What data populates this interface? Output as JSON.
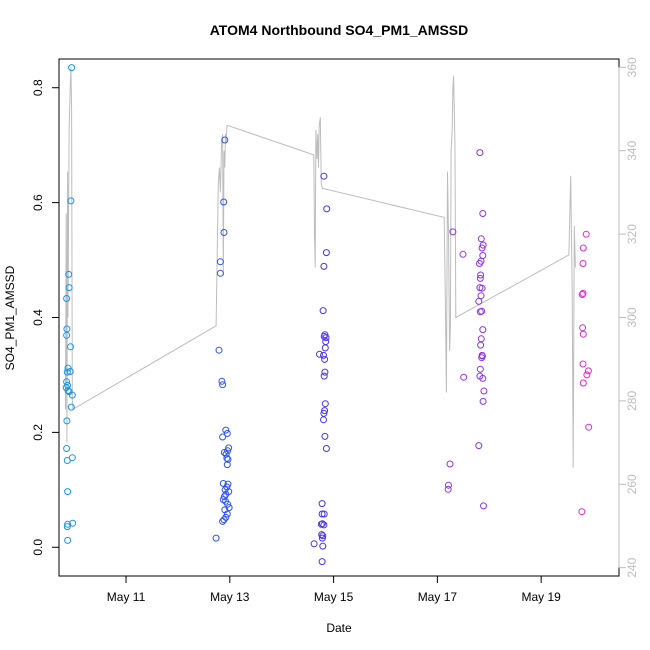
{
  "chart_data": {
    "type": "scatter",
    "title": "ATOM4 Northbound SO4_PM1_AMSSD",
    "xlabel": "Date",
    "ylabel": "SO4_PM1_AMSSD",
    "x_ticks": [
      "May 11",
      "May 13",
      "May 15",
      "May 17",
      "May 19"
    ],
    "y_ticks": [
      "0.0",
      "0.2",
      "0.4",
      "0.6",
      "0.8"
    ],
    "y2_ticks": [
      "240",
      "260",
      "280",
      "300",
      "320",
      "340",
      "360"
    ],
    "x_range": [
      "2018-05-09T17:00",
      "2018-05-20T12:00"
    ],
    "ylim": [
      -0.05,
      0.85
    ],
    "y2lim": [
      238,
      362
    ],
    "grid": false,
    "marker_color_range": [
      "#00a0e0",
      "#ff1ec8"
    ],
    "line_color": "#bdbdbd",
    "scatter_series": [
      {
        "color": "#1896e8",
        "points": [
          [
            "2018-05-09T22:50",
            0.835
          ],
          [
            "2018-05-09T22:30",
            0.603
          ],
          [
            "2018-05-09T21:30",
            0.475
          ],
          [
            "2018-05-09T21:40",
            0.452
          ],
          [
            "2018-05-09T20:30",
            0.433
          ],
          [
            "2018-05-09T20:40",
            0.38
          ],
          [
            "2018-05-09T20:30",
            0.369
          ],
          [
            "2018-05-09T22:20",
            0.349
          ],
          [
            "2018-05-09T21:10",
            0.312
          ],
          [
            "2018-05-09T20:50",
            0.305
          ],
          [
            "2018-05-09T22:10",
            0.306
          ],
          [
            "2018-05-09T20:30",
            0.288
          ],
          [
            "2018-05-09T21:00",
            0.282
          ],
          [
            "2018-05-09T20:20",
            0.278
          ],
          [
            "2018-05-09T21:10",
            0.273
          ],
          [
            "2018-05-09T21:40",
            0.271
          ],
          [
            "2018-05-09T23:10",
            0.265
          ],
          [
            "2018-05-09T22:40",
            0.244
          ],
          [
            "2018-05-09T20:40",
            0.22
          ],
          [
            "2018-05-09T20:30",
            0.172
          ],
          [
            "2018-05-09T23:10",
            0.156
          ],
          [
            "2018-05-09T20:50",
            0.151
          ],
          [
            "2018-05-09T21:00",
            0.097
          ],
          [
            "2018-05-09T23:20",
            0.042
          ],
          [
            "2018-05-09T21:00",
            0.04
          ],
          [
            "2018-05-09T20:50",
            0.036
          ],
          [
            "2018-05-09T21:00",
            0.012
          ]
        ]
      },
      {
        "color": "#2e54ea",
        "points": [
          [
            "2018-05-12T21:40",
            0.709
          ],
          [
            "2018-05-12T21:10",
            0.601
          ],
          [
            "2018-05-12T21:20",
            0.548
          ],
          [
            "2018-05-12T19:40",
            0.497
          ],
          [
            "2018-05-12T19:40",
            0.477
          ],
          [
            "2018-05-12T19:00",
            0.343
          ],
          [
            "2018-05-12T20:20",
            0.289
          ],
          [
            "2018-05-12T20:40",
            0.283
          ],
          [
            "2018-05-12T22:10",
            0.204
          ],
          [
            "2018-05-12T22:50",
            0.198
          ],
          [
            "2018-05-12T20:40",
            0.192
          ],
          [
            "2018-05-12T23:30",
            0.173
          ],
          [
            "2018-05-12T23:00",
            0.168
          ],
          [
            "2018-05-12T21:30",
            0.165
          ],
          [
            "2018-05-12T22:20",
            0.162
          ],
          [
            "2018-05-12T22:40",
            0.155
          ],
          [
            "2018-05-12T23:10",
            0.153
          ],
          [
            "2018-05-12T22:50",
            0.144
          ],
          [
            "2018-05-12T21:00",
            0.111
          ],
          [
            "2018-05-12T23:10",
            0.11
          ],
          [
            "2018-05-12T22:40",
            0.105
          ],
          [
            "2018-05-12T21:50",
            0.1
          ],
          [
            "2018-05-12T23:30",
            0.097
          ],
          [
            "2018-05-12T22:10",
            0.092
          ],
          [
            "2018-05-12T21:30",
            0.088
          ],
          [
            "2018-05-12T21:00",
            0.083
          ],
          [
            "2018-05-12T22:00",
            0.08
          ],
          [
            "2018-05-12T23:00",
            0.075
          ],
          [
            "2018-05-12T23:40",
            0.069
          ],
          [
            "2018-05-12T21:40",
            0.065
          ],
          [
            "2018-05-12T22:50",
            0.058
          ],
          [
            "2018-05-12T22:10",
            0.052
          ],
          [
            "2018-05-12T21:20",
            0.048
          ],
          [
            "2018-05-12T20:40",
            0.045
          ],
          [
            "2018-05-12T17:40",
            0.016
          ]
        ]
      },
      {
        "color": "#4a32ec",
        "points": [
          [
            "2018-05-14T19:30",
            0.646
          ],
          [
            "2018-05-14T20:50",
            0.589
          ],
          [
            "2018-05-14T20:40",
            0.513
          ],
          [
            "2018-05-14T19:30",
            0.489
          ],
          [
            "2018-05-14T19:10",
            0.412
          ],
          [
            "2018-05-14T20:00",
            0.37
          ],
          [
            "2018-05-14T19:40",
            0.367
          ],
          [
            "2018-05-14T20:30",
            0.365
          ],
          [
            "2018-05-14T20:20",
            0.358
          ],
          [
            "2018-05-14T20:10",
            0.347
          ],
          [
            "2018-05-14T17:30",
            0.336
          ],
          [
            "2018-05-14T19:20",
            0.334
          ],
          [
            "2018-05-14T19:50",
            0.327
          ],
          [
            "2018-05-14T20:00",
            0.305
          ],
          [
            "2018-05-14T19:40",
            0.298
          ],
          [
            "2018-05-14T20:10",
            0.25
          ],
          [
            "2018-05-14T19:50",
            0.238
          ],
          [
            "2018-05-14T19:30",
            0.233
          ],
          [
            "2018-05-14T19:20",
            0.222
          ],
          [
            "2018-05-14T20:00",
            0.193
          ],
          [
            "2018-05-14T20:40",
            0.172
          ],
          [
            "2018-05-14T18:40",
            0.076
          ],
          [
            "2018-05-14T18:40",
            0.058
          ],
          [
            "2018-05-14T19:40",
            0.058
          ],
          [
            "2018-05-14T18:50",
            0.041
          ],
          [
            "2018-05-14T18:20",
            0.04
          ],
          [
            "2018-05-14T19:30",
            0.039
          ],
          [
            "2018-05-14T18:30",
            0.022
          ],
          [
            "2018-05-14T19:00",
            0.02
          ],
          [
            "2018-05-14T18:50",
            0.016
          ],
          [
            "2018-05-14T15:00",
            0.006
          ],
          [
            "2018-05-14T19:00",
            0.002
          ],
          [
            "2018-05-14T18:40",
            -0.025
          ]
        ]
      },
      {
        "color": "#8c34ea",
        "points": [
          [
            "2018-05-17T19:40",
            0.687
          ],
          [
            "2018-05-17T21:00",
            0.581
          ],
          [
            "2018-05-17T07:10",
            0.549
          ],
          [
            "2018-05-17T20:20",
            0.537
          ],
          [
            "2018-05-17T21:10",
            0.526
          ],
          [
            "2018-05-17T20:40",
            0.521
          ],
          [
            "2018-05-17T11:50",
            0.51
          ],
          [
            "2018-05-17T21:00",
            0.508
          ],
          [
            "2018-05-17T19:30",
            0.494
          ],
          [
            "2018-05-17T20:10",
            0.498
          ],
          [
            "2018-05-17T20:00",
            0.474
          ],
          [
            "2018-05-17T19:50",
            0.468
          ],
          [
            "2018-05-17T19:40",
            0.452
          ],
          [
            "2018-05-17T20:40",
            0.451
          ],
          [
            "2018-05-17T20:10",
            0.438
          ],
          [
            "2018-05-17T19:10",
            0.428
          ],
          [
            "2018-05-17T20:30",
            0.411
          ],
          [
            "2018-05-17T19:50",
            0.41
          ],
          [
            "2018-05-17T21:00",
            0.379
          ],
          [
            "2018-05-17T20:20",
            0.363
          ],
          [
            "2018-05-17T20:00",
            0.352
          ],
          [
            "2018-05-17T20:40",
            0.334
          ],
          [
            "2018-05-17T20:50",
            0.333
          ],
          [
            "2018-05-17T20:30",
            0.33
          ],
          [
            "2018-05-17T19:50",
            0.31
          ],
          [
            "2018-05-17T21:00",
            0.294
          ],
          [
            "2018-05-17T19:40",
            0.298
          ],
          [
            "2018-05-17T12:10",
            0.296
          ],
          [
            "2018-05-17T21:30",
            0.272
          ],
          [
            "2018-05-17T21:10",
            0.254
          ],
          [
            "2018-05-17T19:10",
            0.177
          ],
          [
            "2018-05-17T05:50",
            0.145
          ],
          [
            "2018-05-17T05:10",
            0.108
          ],
          [
            "2018-05-17T05:00",
            0.101
          ],
          [
            "2018-05-17T21:20",
            0.072
          ]
        ]
      },
      {
        "color": "#dc28d4",
        "points": [
          [
            "2018-05-19T20:50",
            0.545
          ],
          [
            "2018-05-19T19:30",
            0.521
          ],
          [
            "2018-05-19T19:20",
            0.494
          ],
          [
            "2018-05-19T19:00",
            0.44
          ],
          [
            "2018-05-19T19:20",
            0.442
          ],
          [
            "2018-05-19T19:10",
            0.382
          ],
          [
            "2018-05-19T19:30",
            0.371
          ],
          [
            "2018-05-19T19:20",
            0.319
          ],
          [
            "2018-05-19T21:50",
            0.307
          ],
          [
            "2018-05-19T21:10",
            0.3
          ],
          [
            "2018-05-19T19:30",
            0.286
          ],
          [
            "2018-05-19T22:00",
            0.209
          ],
          [
            "2018-05-19T18:50",
            0.062
          ]
        ]
      }
    ],
    "line_series": {
      "axis": "right",
      "points": [
        [
          "2018-05-09T20:00",
          278
        ],
        [
          "2018-05-09T20:20",
          325
        ],
        [
          "2018-05-09T20:40",
          270
        ],
        [
          "2018-05-09T21:00",
          335
        ],
        [
          "2018-05-09T21:10",
          300
        ],
        [
          "2018-05-09T21:40",
          345
        ],
        [
          "2018-05-09T22:10",
          355
        ],
        [
          "2018-05-09T22:30",
          360
        ],
        [
          "2018-05-09T22:50",
          350
        ],
        [
          "2018-05-09T23:10",
          280
        ],
        [
          "2018-05-09T23:30",
          278
        ],
        [
          "2018-05-12T17:40",
          298
        ],
        [
          "2018-05-12T18:40",
          332
        ],
        [
          "2018-05-12T19:10",
          336
        ],
        [
          "2018-05-12T19:40",
          330
        ],
        [
          "2018-05-12T20:00",
          338
        ],
        [
          "2018-05-12T20:10",
          342
        ],
        [
          "2018-05-12T20:40",
          344
        ],
        [
          "2018-05-12T21:00",
          310
        ],
        [
          "2018-05-12T21:20",
          340
        ],
        [
          "2018-05-12T21:40",
          336
        ],
        [
          "2018-05-12T22:00",
          344
        ],
        [
          "2018-05-12T22:20",
          342
        ],
        [
          "2018-05-12T22:40",
          346
        ],
        [
          "2018-05-12T23:20",
          346
        ],
        [
          "2018-05-14T14:50",
          339
        ],
        [
          "2018-05-14T15:10",
          320
        ],
        [
          "2018-05-14T15:30",
          312
        ],
        [
          "2018-05-14T15:50",
          345
        ],
        [
          "2018-05-14T16:20",
          338
        ],
        [
          "2018-05-14T16:40",
          344
        ],
        [
          "2018-05-14T17:00",
          336
        ],
        [
          "2018-05-14T17:20",
          346
        ],
        [
          "2018-05-14T17:50",
          348
        ],
        [
          "2018-05-14T18:20",
          332
        ],
        [
          "2018-05-14T18:50",
          331
        ],
        [
          "2018-05-17T03:10",
          324
        ],
        [
          "2018-05-17T03:40",
          305
        ],
        [
          "2018-05-17T04:10",
          282
        ],
        [
          "2018-05-17T04:40",
          335
        ],
        [
          "2018-05-17T05:10",
          320
        ],
        [
          "2018-05-17T05:40",
          292
        ],
        [
          "2018-05-17T06:00",
          298
        ],
        [
          "2018-05-17T06:20",
          340
        ],
        [
          "2018-05-17T06:50",
          345
        ],
        [
          "2018-05-17T07:10",
          355
        ],
        [
          "2018-05-17T07:30",
          358
        ],
        [
          "2018-05-17T07:50",
          350
        ],
        [
          "2018-05-17T08:10",
          340
        ],
        [
          "2018-05-17T08:30",
          300
        ],
        [
          "2018-05-19T12:50",
          315
        ],
        [
          "2018-05-19T13:40",
          334
        ],
        [
          "2018-05-19T14:20",
          306
        ],
        [
          "2018-05-19T14:50",
          264
        ],
        [
          "2018-05-19T15:20",
          322
        ],
        [
          "2018-05-19T15:50",
          312
        ]
      ]
    }
  }
}
